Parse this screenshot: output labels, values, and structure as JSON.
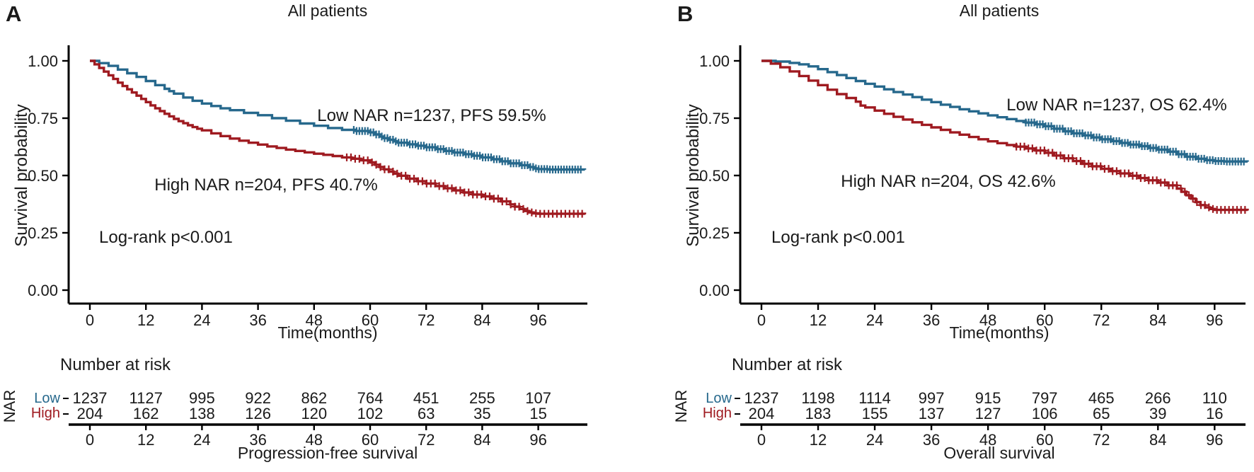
{
  "colors": {
    "low": "#26688c",
    "high": "#9f1a20",
    "text": "#1a1a1a",
    "axis": "#000000"
  },
  "chart_data": [
    {
      "type": "line",
      "panel_label": "A",
      "title": "All patients",
      "xlabel": "Time(months)",
      "ylabel": "Survival probability",
      "logrank": "Log-rank p<0.001",
      "grid": false,
      "xlim": [
        0,
        106
      ],
      "ylim": [
        0,
        1
      ],
      "xticks": [
        0,
        12,
        24,
        36,
        48,
        60,
        72,
        84,
        96
      ],
      "ytick_labels": [
        "0.00",
        "0.25",
        "0.50",
        "0.75",
        "1.00"
      ],
      "ytick_values": [
        0,
        0.25,
        0.5,
        0.75,
        1.0
      ],
      "series": [
        {
          "name": "Low NAR",
          "color_key": "low",
          "annotation": "Low NAR n=1237, PFS 59.5%",
          "steps": [
            [
              0,
              1
            ],
            [
              2,
              0.99
            ],
            [
              4,
              0.978
            ],
            [
              6,
              0.962
            ],
            [
              8,
              0.946
            ],
            [
              10,
              0.93
            ],
            [
              12,
              0.912
            ],
            [
              14,
              0.894
            ],
            [
              16,
              0.878
            ],
            [
              17,
              0.868
            ],
            [
              18,
              0.857
            ],
            [
              20,
              0.84
            ],
            [
              22,
              0.826
            ],
            [
              24,
              0.814
            ],
            [
              26,
              0.803
            ],
            [
              28,
              0.793
            ],
            [
              30,
              0.785
            ],
            [
              33,
              0.773
            ],
            [
              36,
              0.763
            ],
            [
              39,
              0.75
            ],
            [
              42,
              0.739
            ],
            [
              45,
              0.727
            ],
            [
              48,
              0.717
            ],
            [
              51,
              0.707
            ],
            [
              54,
              0.699
            ],
            [
              57,
              0.694
            ],
            [
              60,
              0.688
            ],
            [
              61,
              0.679
            ],
            [
              62,
              0.67
            ],
            [
              63,
              0.663
            ],
            [
              64,
              0.656
            ],
            [
              65,
              0.649
            ],
            [
              66,
              0.643
            ],
            [
              68,
              0.636
            ],
            [
              70,
              0.63
            ],
            [
              72,
              0.623
            ],
            [
              74,
              0.615
            ],
            [
              76,
              0.607
            ],
            [
              78,
              0.6
            ],
            [
              80,
              0.593
            ],
            [
              82,
              0.586
            ],
            [
              84,
              0.579
            ],
            [
              86,
              0.571
            ],
            [
              88,
              0.562
            ],
            [
              90,
              0.553
            ],
            [
              92,
              0.545
            ],
            [
              94,
              0.537
            ],
            [
              95,
              0.531
            ],
            [
              96,
              0.528
            ],
            [
              98,
              0.526
            ],
            [
              106,
              0.525
            ]
          ],
          "censor_ranges": [
            [
              56.5,
              105.5,
              0.6
            ]
          ]
        },
        {
          "name": "High NAR",
          "color_key": "high",
          "annotation": "High NAR n=204, PFS 40.7%",
          "steps": [
            [
              0,
              1
            ],
            [
              1,
              0.985
            ],
            [
              2,
              0.969
            ],
            [
              3,
              0.953
            ],
            [
              4,
              0.937
            ],
            [
              5,
              0.921
            ],
            [
              6,
              0.905
            ],
            [
              7,
              0.89
            ],
            [
              8,
              0.876
            ],
            [
              9,
              0.862
            ],
            [
              10,
              0.848
            ],
            [
              11,
              0.834
            ],
            [
              12,
              0.82
            ],
            [
              13,
              0.806
            ],
            [
              14,
              0.793
            ],
            [
              15,
              0.781
            ],
            [
              16,
              0.769
            ],
            [
              17,
              0.758
            ],
            [
              18,
              0.747
            ],
            [
              19,
              0.737
            ],
            [
              20,
              0.728
            ],
            [
              21,
              0.719
            ],
            [
              22,
              0.711
            ],
            [
              23,
              0.704
            ],
            [
              24,
              0.697
            ],
            [
              26,
              0.684
            ],
            [
              28,
              0.672
            ],
            [
              30,
              0.661
            ],
            [
              32,
              0.652
            ],
            [
              34,
              0.643
            ],
            [
              36,
              0.635
            ],
            [
              38,
              0.627
            ],
            [
              40,
              0.62
            ],
            [
              42,
              0.613
            ],
            [
              44,
              0.607
            ],
            [
              46,
              0.601
            ],
            [
              48,
              0.595
            ],
            [
              50,
              0.59
            ],
            [
              52,
              0.585
            ],
            [
              54,
              0.579
            ],
            [
              56,
              0.573
            ],
            [
              58,
              0.566
            ],
            [
              60,
              0.557
            ],
            [
              61,
              0.547
            ],
            [
              62,
              0.537
            ],
            [
              63,
              0.527
            ],
            [
              64,
              0.517
            ],
            [
              65,
              0.508
            ],
            [
              66,
              0.499
            ],
            [
              68,
              0.486
            ],
            [
              70,
              0.475
            ],
            [
              72,
              0.465
            ],
            [
              74,
              0.454
            ],
            [
              76,
              0.444
            ],
            [
              78,
              0.435
            ],
            [
              80,
              0.426
            ],
            [
              82,
              0.417
            ],
            [
              84,
              0.409
            ],
            [
              86,
              0.399
            ],
            [
              88,
              0.387
            ],
            [
              90,
              0.374
            ],
            [
              91,
              0.364
            ],
            [
              92,
              0.354
            ],
            [
              93,
              0.345
            ],
            [
              94,
              0.339
            ],
            [
              95,
              0.335
            ],
            [
              96,
              0.333
            ],
            [
              106,
              0.331
            ]
          ],
          "censor_ranges": [
            [
              55,
              105.5,
              0.9
            ]
          ]
        }
      ],
      "risk_table": {
        "title": "Number at risk",
        "axis_label": "NAR",
        "times": [
          0,
          12,
          24,
          36,
          48,
          60,
          72,
          84,
          96
        ],
        "rows": [
          {
            "label": "Low",
            "color_key": "low",
            "values": [
              1237,
              1127,
              995,
              922,
              862,
              764,
              451,
              255,
              107
            ]
          },
          {
            "label": "High",
            "color_key": "high",
            "values": [
              204,
              162,
              138,
              126,
              120,
              102,
              63,
              35,
              15
            ]
          }
        ],
        "caption": "Progression-free survival"
      }
    },
    {
      "type": "line",
      "panel_label": "B",
      "title": "All patients",
      "xlabel": "Time(months)",
      "ylabel": "Survival probability",
      "logrank": "Log-rank p<0.001",
      "grid": false,
      "xlim": [
        0,
        103
      ],
      "ylim": [
        0,
        1
      ],
      "xticks": [
        0,
        12,
        24,
        36,
        48,
        60,
        72,
        84,
        96
      ],
      "ytick_labels": [
        "0.00",
        "0.25",
        "0.50",
        "0.75",
        "1.00"
      ],
      "ytick_values": [
        0,
        0.25,
        0.5,
        0.75,
        1.0
      ],
      "series": [
        {
          "name": "Low NAR",
          "color_key": "low",
          "annotation": "Low NAR n=1237, OS 62.4%",
          "steps": [
            [
              0,
              1
            ],
            [
              3,
              0.997
            ],
            [
              6,
              0.991
            ],
            [
              8,
              0.985
            ],
            [
              10,
              0.976
            ],
            [
              12,
              0.964
            ],
            [
              14,
              0.951
            ],
            [
              16,
              0.938
            ],
            [
              18,
              0.925
            ],
            [
              20,
              0.912
            ],
            [
              22,
              0.9
            ],
            [
              24,
              0.888
            ],
            [
              26,
              0.876
            ],
            [
              28,
              0.864
            ],
            [
              30,
              0.853
            ],
            [
              32,
              0.842
            ],
            [
              34,
              0.831
            ],
            [
              36,
              0.82
            ],
            [
              38,
              0.809
            ],
            [
              40,
              0.799
            ],
            [
              42,
              0.789
            ],
            [
              44,
              0.78
            ],
            [
              46,
              0.771
            ],
            [
              48,
              0.762
            ],
            [
              50,
              0.754
            ],
            [
              52,
              0.746
            ],
            [
              54,
              0.738
            ],
            [
              56,
              0.731
            ],
            [
              58,
              0.723
            ],
            [
              60,
              0.715
            ],
            [
              62,
              0.704
            ],
            [
              64,
              0.693
            ],
            [
              66,
              0.684
            ],
            [
              68,
              0.675
            ],
            [
              70,
              0.666
            ],
            [
              72,
              0.658
            ],
            [
              74,
              0.65
            ],
            [
              76,
              0.642
            ],
            [
              78,
              0.635
            ],
            [
              80,
              0.628
            ],
            [
              82,
              0.62
            ],
            [
              84,
              0.613
            ],
            [
              86,
              0.604
            ],
            [
              88,
              0.593
            ],
            [
              90,
              0.582
            ],
            [
              92,
              0.573
            ],
            [
              94,
              0.567
            ],
            [
              96,
              0.563
            ],
            [
              98,
              0.561
            ],
            [
              103,
              0.56
            ]
          ],
          "censor_ranges": [
            [
              56,
              102.5,
              0.6
            ]
          ]
        },
        {
          "name": "High NAR",
          "color_key": "high",
          "annotation": "High NAR n=204, OS 42.6%",
          "steps": [
            [
              0,
              1
            ],
            [
              2,
              0.988
            ],
            [
              4,
              0.972
            ],
            [
              6,
              0.954
            ],
            [
              8,
              0.934
            ],
            [
              10,
              0.914
            ],
            [
              12,
              0.894
            ],
            [
              14,
              0.874
            ],
            [
              16,
              0.855
            ],
            [
              18,
              0.838
            ],
            [
              20,
              0.822
            ],
            [
              21,
              0.805
            ],
            [
              22,
              0.797
            ],
            [
              24,
              0.783
            ],
            [
              26,
              0.769
            ],
            [
              28,
              0.756
            ],
            [
              30,
              0.744
            ],
            [
              32,
              0.732
            ],
            [
              34,
              0.721
            ],
            [
              36,
              0.71
            ],
            [
              38,
              0.699
            ],
            [
              40,
              0.688
            ],
            [
              42,
              0.678
            ],
            [
              44,
              0.668
            ],
            [
              46,
              0.658
            ],
            [
              48,
              0.649
            ],
            [
              50,
              0.641
            ],
            [
              52,
              0.633
            ],
            [
              54,
              0.626
            ],
            [
              56,
              0.618
            ],
            [
              58,
              0.609
            ],
            [
              60,
              0.599
            ],
            [
              62,
              0.587
            ],
            [
              64,
              0.575
            ],
            [
              66,
              0.563
            ],
            [
              68,
              0.551
            ],
            [
              70,
              0.54
            ],
            [
              72,
              0.529
            ],
            [
              74,
              0.519
            ],
            [
              76,
              0.509
            ],
            [
              78,
              0.499
            ],
            [
              80,
              0.489
            ],
            [
              82,
              0.479
            ],
            [
              84,
              0.469
            ],
            [
              86,
              0.457
            ],
            [
              88,
              0.443
            ],
            [
              89,
              0.429
            ],
            [
              90,
              0.414
            ],
            [
              91,
              0.399
            ],
            [
              92,
              0.384
            ],
            [
              93,
              0.371
            ],
            [
              94,
              0.361
            ],
            [
              95,
              0.354
            ],
            [
              96,
              0.35
            ],
            [
              103,
              0.348
            ]
          ],
          "censor_ranges": [
            [
              54,
              102.5,
              0.85
            ]
          ]
        }
      ],
      "risk_table": {
        "title": "Number at risk",
        "axis_label": "NAR",
        "times": [
          0,
          12,
          24,
          36,
          48,
          60,
          72,
          84,
          96
        ],
        "rows": [
          {
            "label": "Low",
            "color_key": "low",
            "values": [
              1237,
              1198,
              1114,
              997,
              915,
              797,
              465,
              266,
              110
            ]
          },
          {
            "label": "High",
            "color_key": "high",
            "values": [
              204,
              183,
              155,
              137,
              127,
              106,
              65,
              39,
              16
            ]
          }
        ],
        "caption": "Overall survival"
      }
    }
  ]
}
